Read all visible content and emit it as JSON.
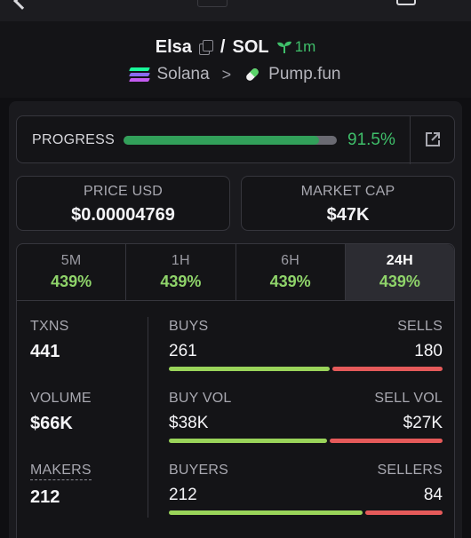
{
  "header": {
    "token_name": "Elsa",
    "separator": "/",
    "quote": "SOL",
    "age": "1m",
    "chain": "Solana",
    "platform": "Pump.fun"
  },
  "progress": {
    "label": "PROGRESS",
    "percent_text": "91.5%",
    "percent_value": 0.915
  },
  "stats": {
    "price_label": "PRICE USD",
    "price_value": "$0.00004769",
    "mcap_label": "MARKET CAP",
    "mcap_value": "$47K"
  },
  "tabs": [
    {
      "label": "5M",
      "value": "439%"
    },
    {
      "label": "1H",
      "value": "439%"
    },
    {
      "label": "6H",
      "value": "439%"
    },
    {
      "label": "24H",
      "value": "439%",
      "active": true
    }
  ],
  "metrics": {
    "txns_label": "TXNS",
    "txns_value": "441",
    "volume_label": "VOLUME",
    "volume_value": "$66K",
    "makers_label": "MAKERS",
    "makers_value": "212"
  },
  "ratios": {
    "buys": {
      "left_label": "BUYS",
      "right_label": "SELLS",
      "left_value": "261",
      "right_value": "180",
      "buy_fraction": 0.592
    },
    "vol": {
      "left_label": "BUY VOL",
      "right_label": "SELL VOL",
      "left_value": "$38K",
      "right_value": "$27K",
      "buy_fraction": 0.585
    },
    "makers": {
      "left_label": "BUYERS",
      "right_label": "SELLERS",
      "left_value": "212",
      "right_value": "84",
      "buy_fraction": 0.716
    }
  },
  "colors": {
    "accent_green": "#3fbf6a",
    "buy_bar": "#9ad45a",
    "sell_bar": "#e55a5a",
    "tab_value_green": "#8fd46a"
  },
  "icons": {
    "copy": "copy-icon",
    "sprout": "sprout-icon",
    "solana": "solana-icon",
    "pill": "pill-icon",
    "external": "external-link-icon"
  }
}
